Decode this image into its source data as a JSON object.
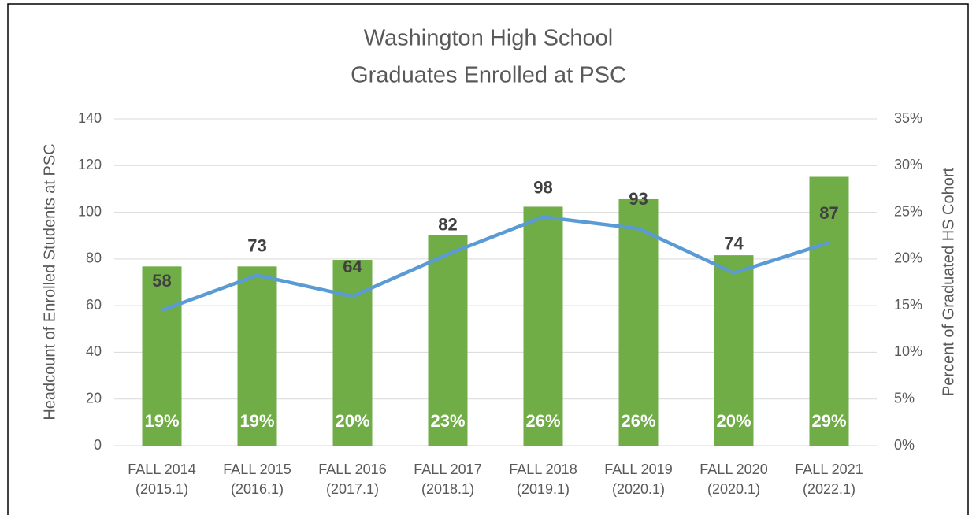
{
  "chart_data": {
    "type": "bar-line",
    "title": [
      "Washington High School",
      "Graduates Enrolled at PSC"
    ],
    "ylabel": "Headcount of Enrolled Students at PSC",
    "y2label": "Percent of Graduated HS Cohort",
    "categories": [
      [
        "FALL 2014",
        "(2015.1)"
      ],
      [
        "FALL 2015",
        "(2016.1)"
      ],
      [
        "FALL 2016",
        "(2017.1)"
      ],
      [
        "FALL 2017",
        "(2018.1)"
      ],
      [
        "FALL 2018",
        "(2019.1)"
      ],
      [
        "FALL 2019",
        "(2020.1)"
      ],
      [
        "FALL 2020",
        "(2020.1)"
      ],
      [
        "FALL 2021",
        "(2022.1)"
      ]
    ],
    "series": [
      {
        "type": "bar",
        "axis": "y2",
        "color": "#70ad47",
        "values": [
          19.2,
          19.2,
          19.9,
          22.6,
          25.6,
          26.4,
          20.4,
          28.8
        ],
        "value_labels": [
          "19%",
          "19%",
          "20%",
          "23%",
          "26%",
          "26%",
          "20%",
          "29%"
        ]
      },
      {
        "type": "line",
        "axis": "y",
        "color": "#5b9bd5",
        "values": [
          58,
          73,
          64,
          82,
          98,
          93,
          74,
          87
        ]
      }
    ],
    "ylim": [
      0,
      140
    ],
    "yticks": [
      0,
      20,
      40,
      60,
      80,
      100,
      120,
      140
    ],
    "y2lim": [
      0,
      35
    ],
    "y2ticks": [
      {
        "value": 0,
        "label": "0%"
      },
      {
        "value": 5,
        "label": "5%"
      },
      {
        "value": 10,
        "label": "10%"
      },
      {
        "value": 15,
        "label": "15%"
      },
      {
        "value": 20,
        "label": "20%"
      },
      {
        "value": 25,
        "label": "25%"
      },
      {
        "value": 30,
        "label": "30%"
      },
      {
        "value": 35,
        "label": "35%"
      }
    ],
    "grid": true
  }
}
